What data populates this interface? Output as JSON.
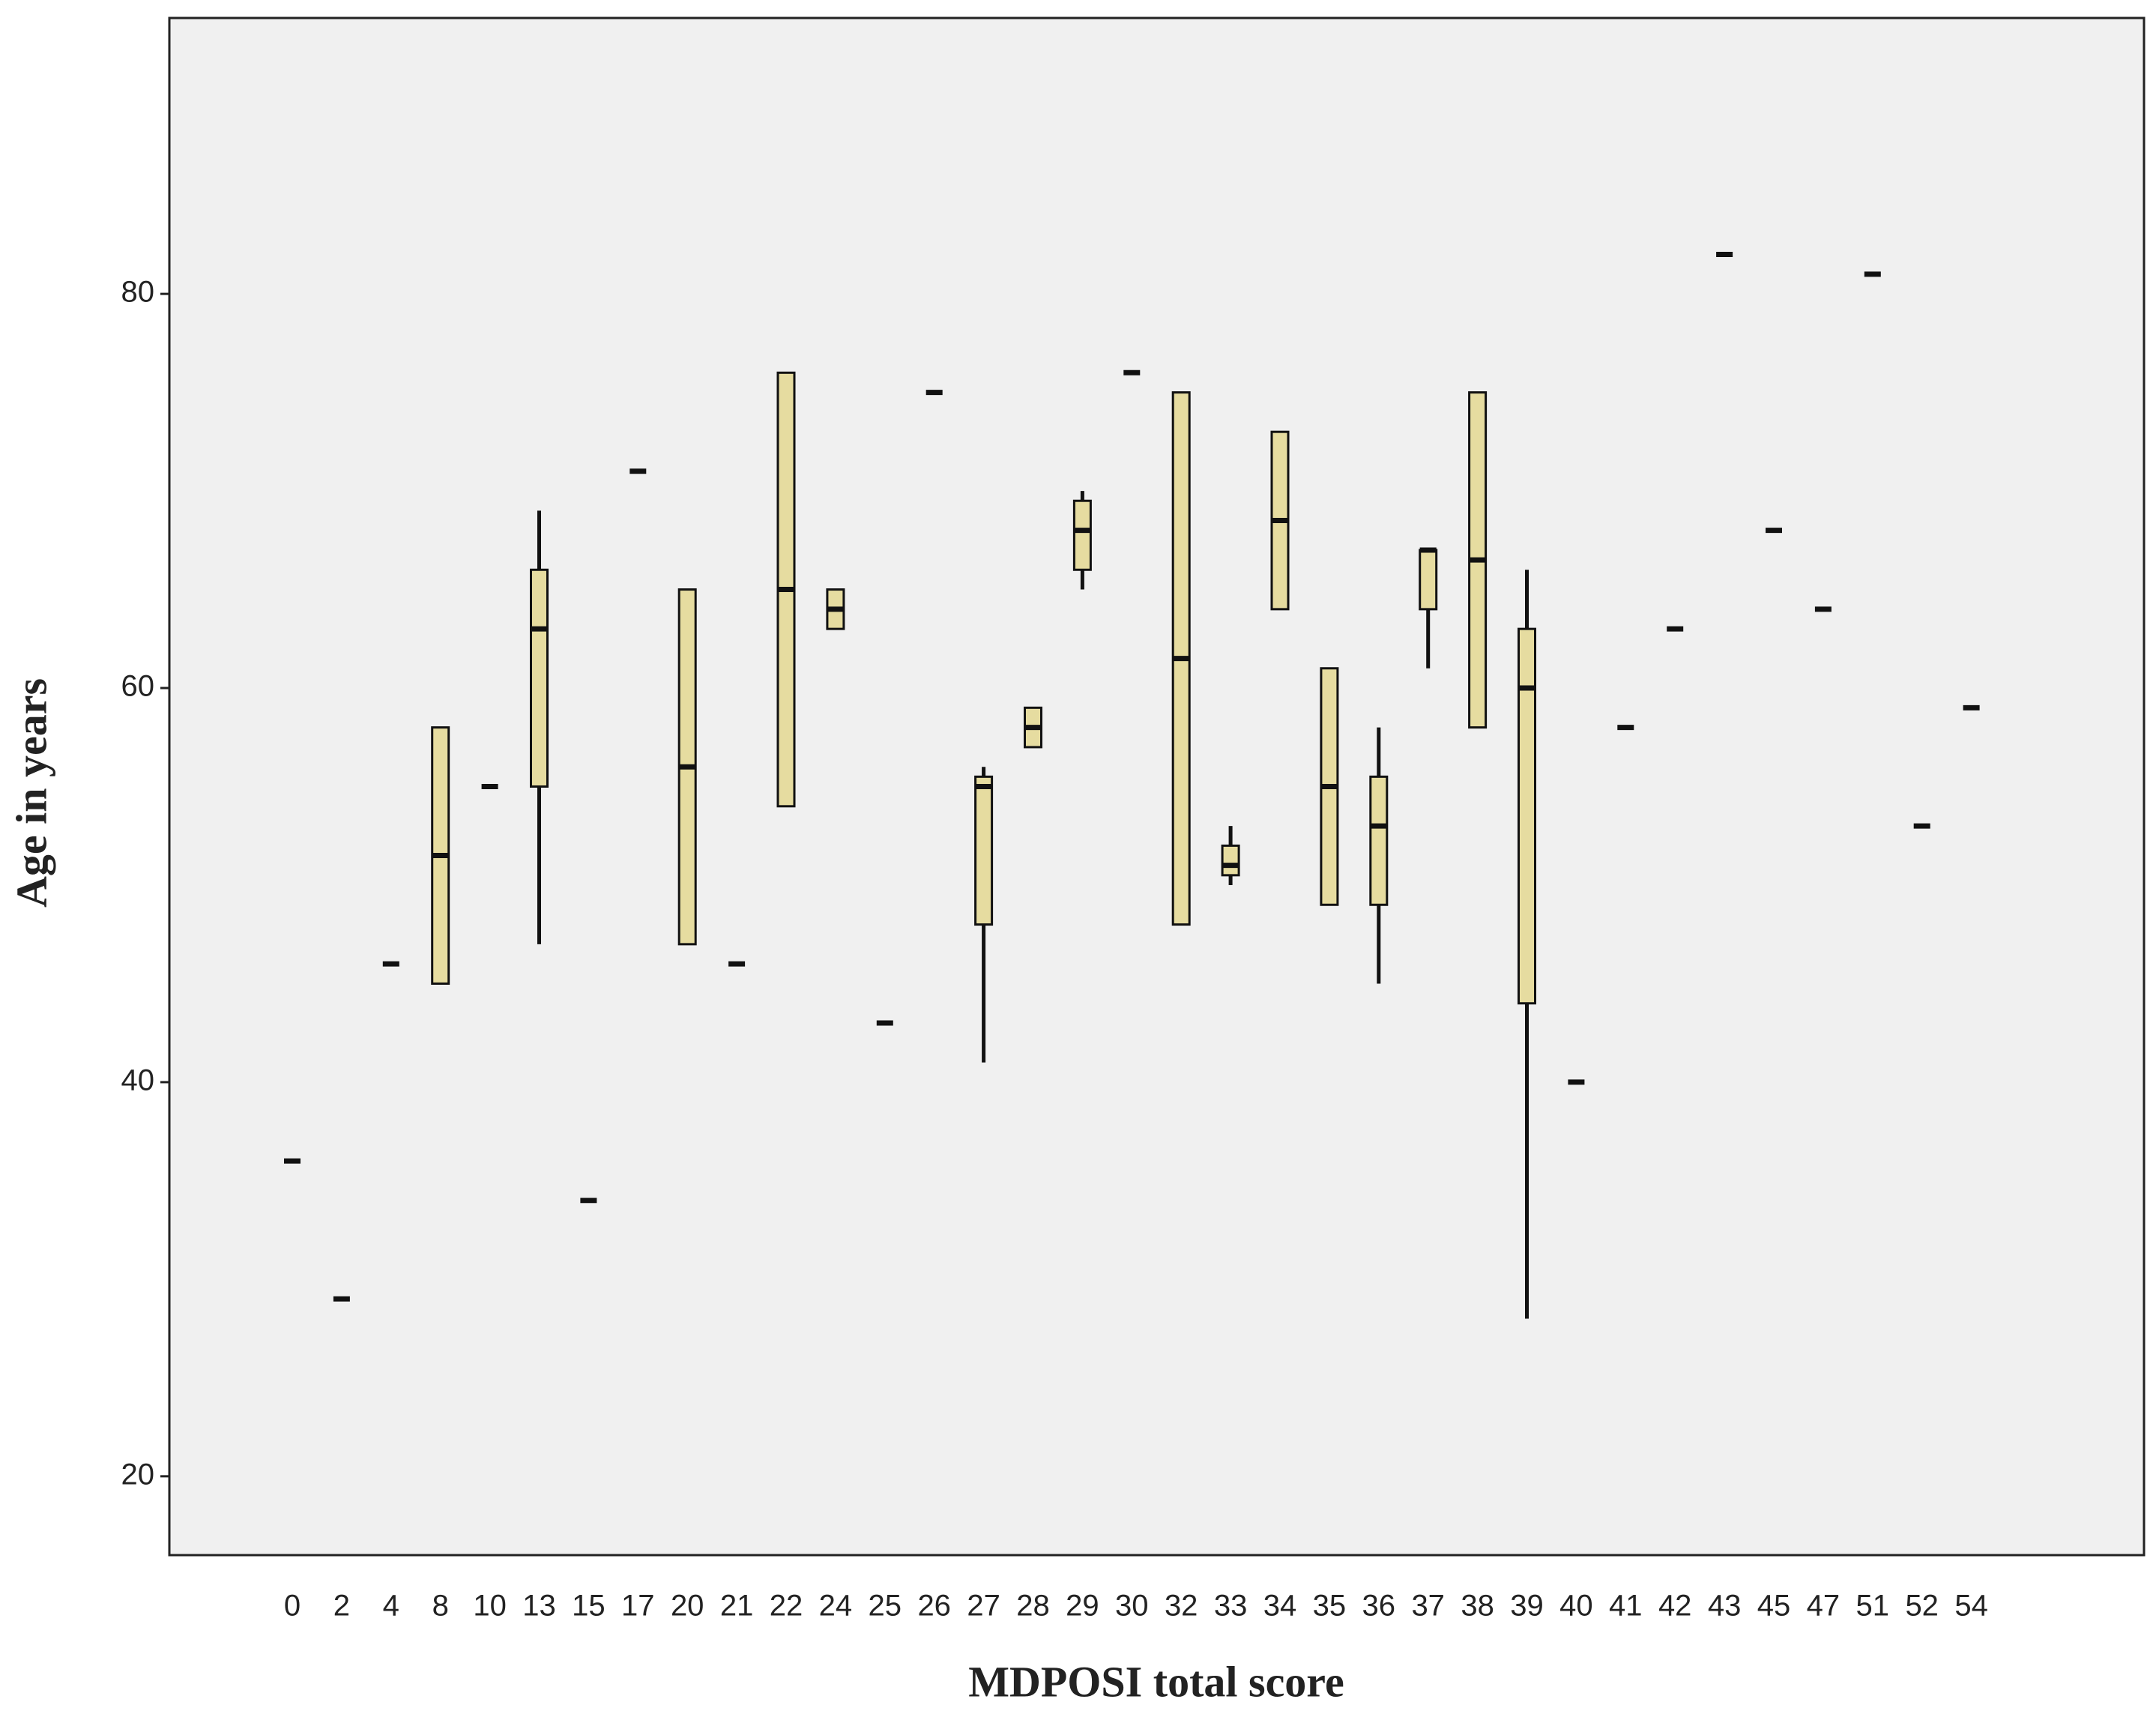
{
  "chart_data": {
    "type": "boxplot",
    "x_label": "MDPOSI total score",
    "y_label": "Age in years",
    "categories": [
      "0",
      "2",
      "4",
      "8",
      "10",
      "13",
      "15",
      "17",
      "20",
      "21",
      "22",
      "24",
      "25",
      "26",
      "27",
      "28",
      "29",
      "30",
      "32",
      "33",
      "34",
      "35",
      "36",
      "37",
      "38",
      "39",
      "40",
      "41",
      "42",
      "43",
      "45",
      "47",
      "51",
      "52",
      "54"
    ],
    "min": [
      36,
      29,
      46,
      45,
      55,
      47,
      34,
      71,
      47,
      46,
      54,
      63,
      43,
      75,
      41,
      57,
      65,
      76,
      48,
      50,
      64,
      49,
      45,
      61,
      58,
      28,
      40,
      58,
      63,
      82,
      68,
      64,
      81,
      53,
      59
    ],
    "q1": [
      36,
      29,
      46,
      45,
      55,
      55,
      34,
      71,
      47,
      46,
      54,
      63,
      43,
      75,
      48,
      57,
      66,
      76,
      48,
      50.5,
      64,
      49,
      49,
      64,
      58,
      44,
      40,
      58,
      63,
      82,
      68,
      64,
      81,
      53,
      59
    ],
    "median": [
      36,
      29,
      46,
      51.5,
      55,
      63,
      34,
      71,
      56,
      46,
      65,
      64,
      43,
      75,
      55,
      58,
      68,
      76,
      61.5,
      51,
      68.5,
      55,
      53,
      67,
      66.5,
      60,
      40,
      58,
      63,
      82,
      68,
      64,
      81,
      53,
      59
    ],
    "q3": [
      36,
      29,
      46,
      58,
      55,
      66,
      34,
      71,
      65,
      46,
      76,
      65,
      43,
      75,
      55.5,
      59,
      69.5,
      76,
      75,
      52,
      73,
      61,
      55.5,
      67,
      75,
      63,
      40,
      58,
      63,
      82,
      68,
      64,
      81,
      53,
      59
    ],
    "max": [
      36,
      29,
      46,
      58,
      55,
      69,
      34,
      71,
      65,
      46,
      76,
      65,
      43,
      75,
      56,
      59,
      70,
      76,
      75,
      53,
      73,
      61,
      58,
      67,
      75,
      66,
      40,
      58,
      63,
      82,
      68,
      64,
      81,
      53,
      59
    ],
    "color": "#e6dca0",
    "ylim": [
      16,
      94
    ],
    "yticks": [
      20,
      40,
      60,
      80
    ]
  }
}
